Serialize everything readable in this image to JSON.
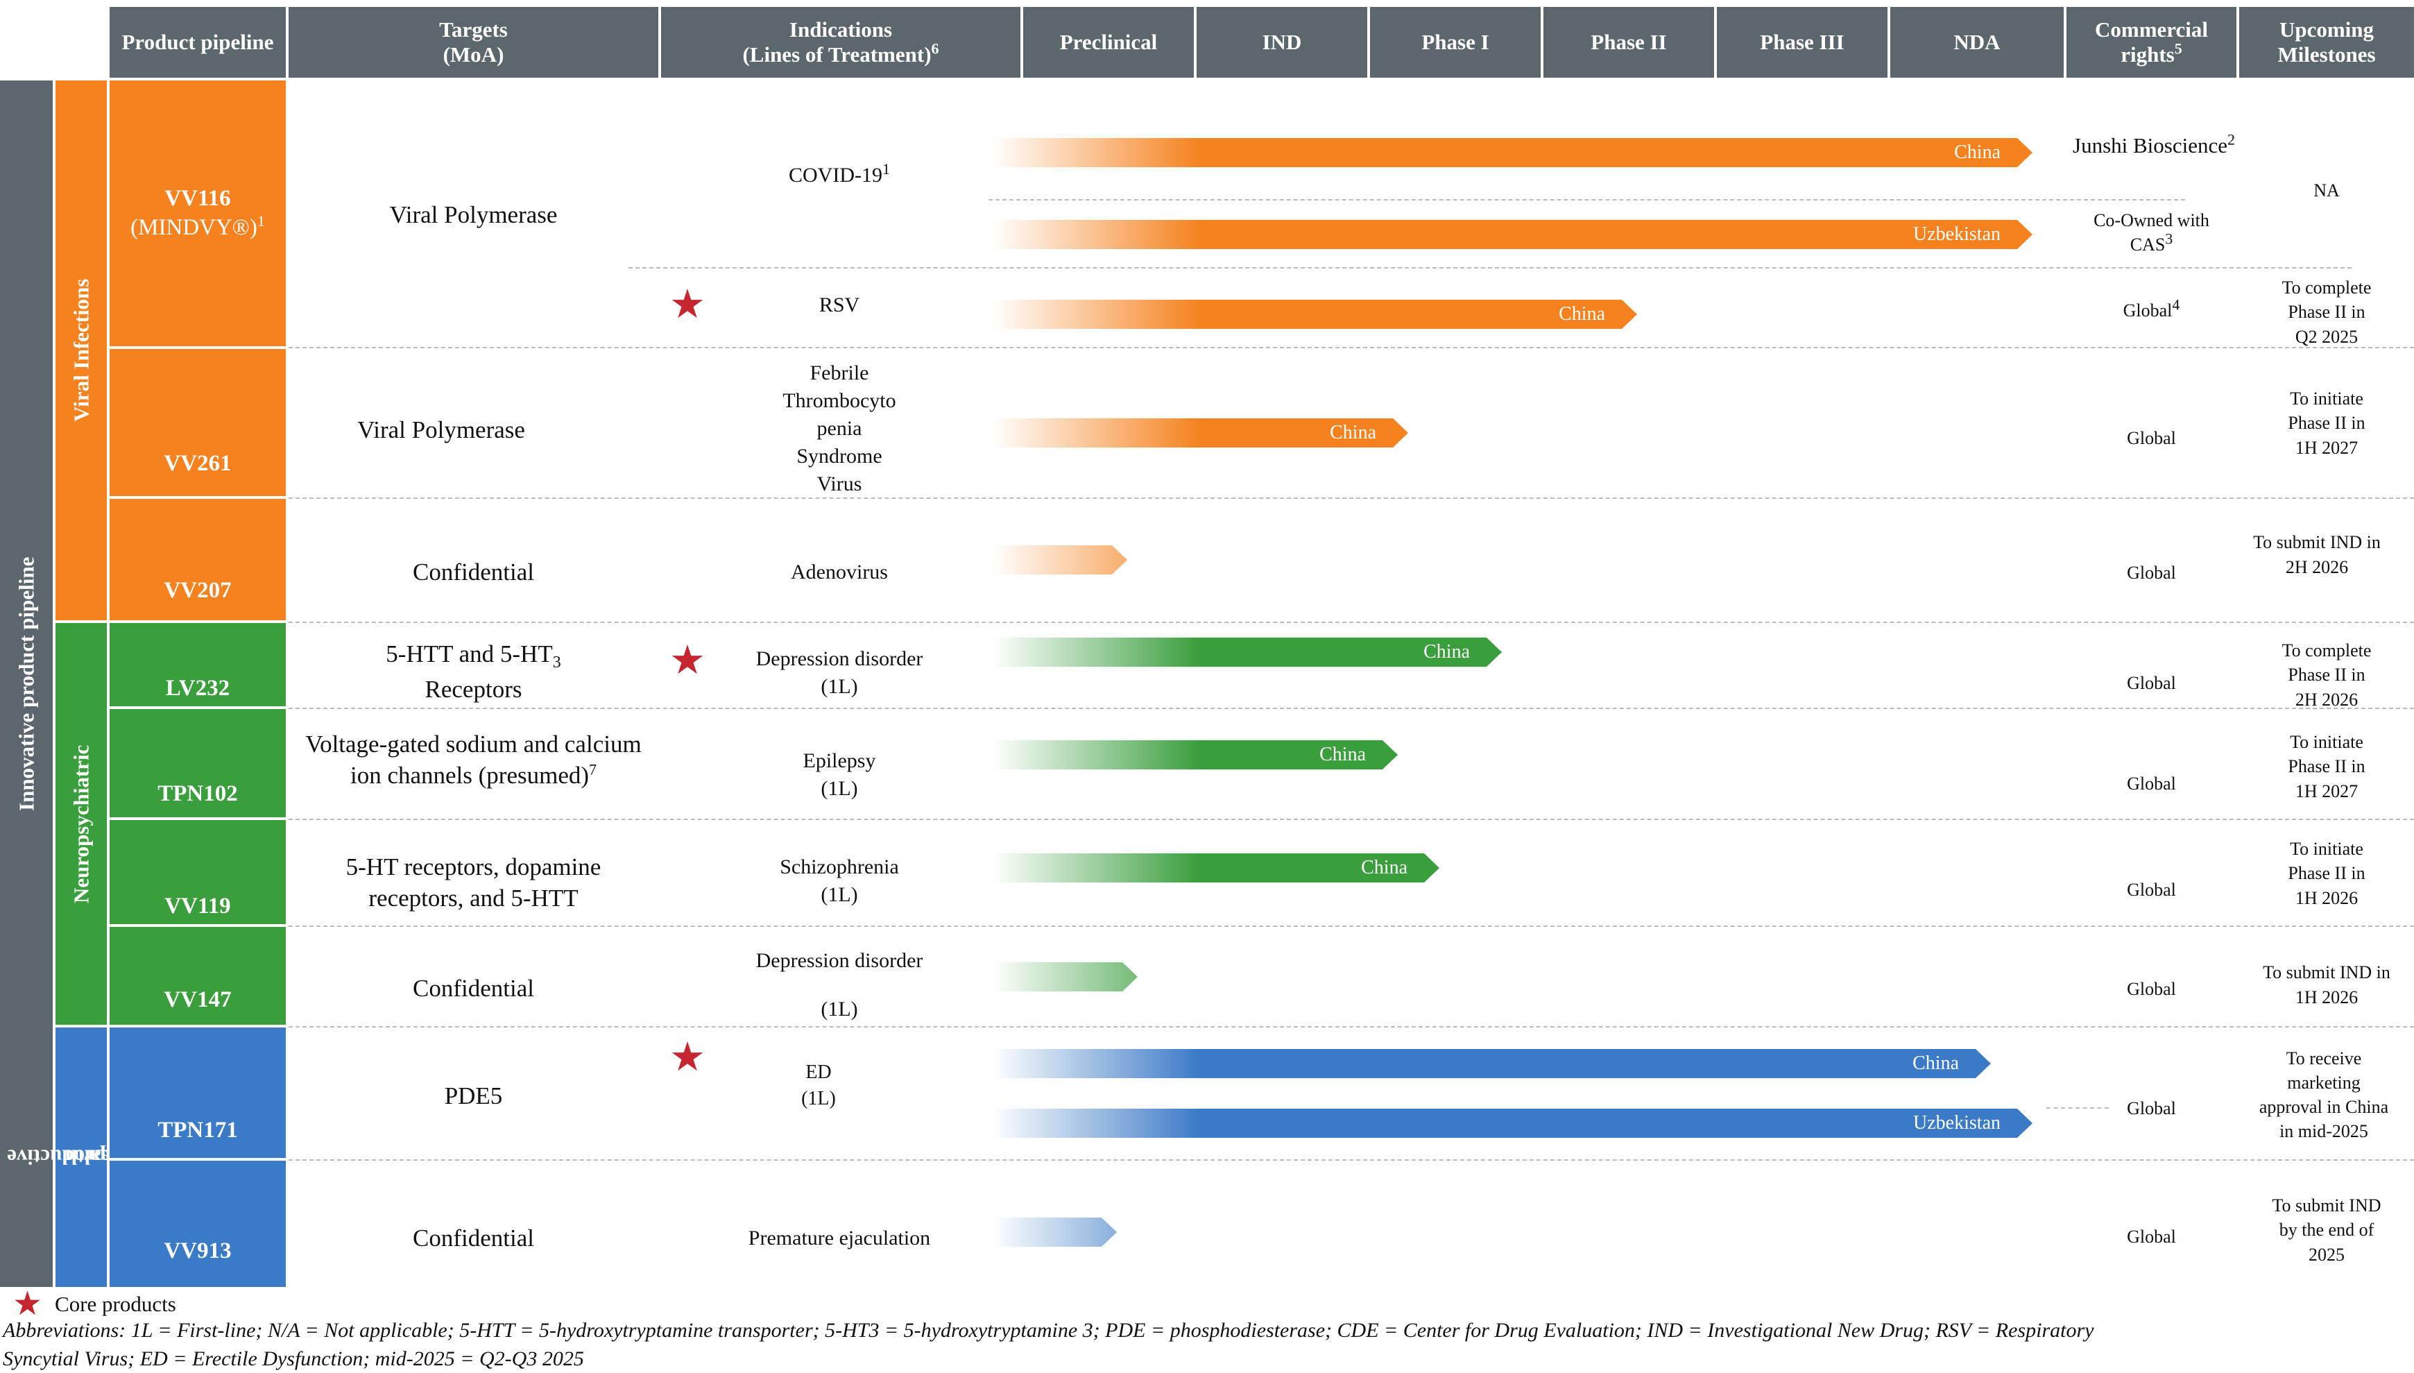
{
  "colors": {
    "header_bg": "#5c666d",
    "viral": "#f5821f",
    "neuro": "#3a9e3d",
    "repro": "#3b7ac6",
    "star": "#c4272f"
  },
  "header": {
    "product_pipeline": "Product pipeline",
    "targets": "Targets",
    "targets_sub": "(MoA)",
    "indications": "Indications",
    "indications_sub": "(Lines of Treatment)",
    "indications_note": "6",
    "stages": [
      "Preclinical",
      "IND",
      "Phase I",
      "Phase II",
      "Phase III",
      "NDA"
    ],
    "commercial": "Commercial rights",
    "commercial_note": "5",
    "milestones": "Upcoming Milestones"
  },
  "section_label": "Innovative product pipeline",
  "categories": {
    "viral": "Viral Infections",
    "neuro": "Neuropsychiatric",
    "repro_line1": "Reproductive",
    "repro_line2": "health"
  },
  "products": {
    "vv116": {
      "name": "VV116",
      "brand": "(MINDVY®)",
      "note": "1",
      "target": "Viral Polymerase"
    },
    "vv261": {
      "name": "VV261",
      "target": "Viral Polymerase"
    },
    "vv207": {
      "name": "VV207",
      "target": "Confidential"
    },
    "lv232": {
      "name": "LV232",
      "target_a": "5-HTT and 5-HT",
      "target_sub": "3",
      "target_b": "Receptors"
    },
    "tpn102": {
      "name": "TPN102",
      "target_a": "Voltage-gated sodium and calcium",
      "target_b": "ion channels (presumed)",
      "target_note": "7"
    },
    "vv119": {
      "name": "VV119",
      "target_a": "5-HT receptors, dopamine",
      "target_b": "receptors, and 5-HTT"
    },
    "vv147": {
      "name": "VV147",
      "target": "Confidential"
    },
    "tpn171": {
      "name": "TPN171",
      "target": "PDE5"
    },
    "vv913": {
      "name": "VV913",
      "target": "Confidential"
    }
  },
  "indications": {
    "covid": "COVID-19",
    "covid_note": "1",
    "rsv": "RSV",
    "sftsv": [
      "Febrile",
      "Thrombocyto",
      "penia",
      "Syndrome",
      "Virus"
    ],
    "adeno": "Adenovirus",
    "lv232": [
      "Depression disorder",
      "(1L)"
    ],
    "tpn102": [
      "Epilepsy",
      "(1L)"
    ],
    "vv119": [
      "Schizophrenia",
      "(1L)"
    ],
    "vv147": [
      "Depression disorder",
      "(1L)"
    ],
    "tpn171": [
      "ED",
      "(1L)"
    ],
    "vv913": "Premature ejaculation"
  },
  "bars": {
    "covid_china": {
      "label": "China",
      "stage": "NDA",
      "progress": 1.0
    },
    "covid_uzb": {
      "label": "Uzbekistan",
      "stage": "NDA",
      "progress": 1.0
    },
    "rsv": {
      "label": "China",
      "stage": "Phase III",
      "progress": 0.62
    },
    "vv261": {
      "label": "China",
      "stage": "Phase I",
      "progress": 0.4
    },
    "vv207": {
      "label": "",
      "stage": "Preclinical",
      "progress": 0.13
    },
    "lv232": {
      "label": "China",
      "stage": "Phase II",
      "progress": 0.49
    },
    "tpn102": {
      "label": "China",
      "stage": "Phase I",
      "progress": 0.39
    },
    "vv119": {
      "label": "China",
      "stage": "Phase I",
      "progress": 0.43
    },
    "vv147": {
      "label": "",
      "stage": "Preclinical",
      "progress": 0.14
    },
    "tpn171_china": {
      "label": "China",
      "stage": "NDA",
      "progress": 0.96
    },
    "tpn171_uzb": {
      "label": "Uzbekistan",
      "stage": "NDA",
      "progress": 1.0
    },
    "vv913": {
      "label": "",
      "stage": "Preclinical",
      "progress": 0.12
    }
  },
  "rights": {
    "covid_china": "Junshi Bioscience",
    "covid_china_note": "2",
    "covid_uzb_a": "Co-Owned with",
    "covid_uzb_b": "CAS",
    "covid_uzb_note": "3",
    "rsv": "Global",
    "rsv_note": "4",
    "global": "Global"
  },
  "milestones": {
    "covid": "NA",
    "rsv": [
      "To complete",
      "Phase II in",
      "Q2 2025"
    ],
    "vv261": [
      "To initiate",
      "Phase II in",
      "1H 2027"
    ],
    "vv207": [
      "To submit IND in",
      "2H 2026"
    ],
    "lv232": [
      "To complete",
      "Phase II in",
      "2H 2026"
    ],
    "tpn102": [
      "To initiate",
      "Phase II in",
      "1H 2027"
    ],
    "vv119": [
      "To initiate",
      "Phase II in",
      "1H 2026"
    ],
    "vv147": [
      "To submit IND in",
      "1H 2026"
    ],
    "tpn171": [
      "To receive",
      "marketing",
      "approval in China",
      "in mid-2025"
    ],
    "vv913": [
      "To submit IND",
      "by the end of",
      "2025"
    ]
  },
  "legend": {
    "core_products": "Core products"
  },
  "footnote": {
    "line1": "Abbreviations: 1L = First-line; N/A = Not applicable; 5-HTT = 5-hydroxytryptamine transporter; 5-HT3 = 5-hydroxytryptamine 3; PDE = phosphodiesterase; CDE = Center for Drug Evaluation; IND = Investigational New Drug; RSV = Respiratory",
    "line2": "Syncytial Virus; ED = Erectile Dysfunction; mid-2025 = Q2-Q3 2025"
  }
}
